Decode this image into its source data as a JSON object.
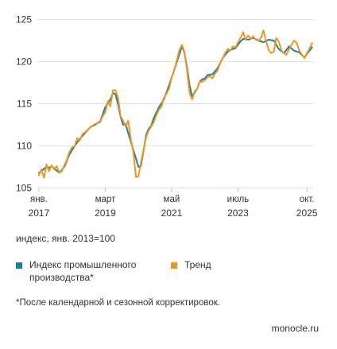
{
  "chart_data": {
    "type": "line",
    "xlabel": "",
    "ylabel": "",
    "ylim": [
      105,
      125.5
    ],
    "y_ticks": [
      105,
      110,
      115,
      120,
      125
    ],
    "x_ticks": [
      {
        "month": "янв.",
        "year": "2017",
        "x": 2017.0
      },
      {
        "month": "март",
        "year": "2019",
        "x": 2019.167
      },
      {
        "month": "май",
        "year": "2021",
        "x": 2021.333
      },
      {
        "month": "июль",
        "year": "2023",
        "x": 2023.5
      },
      {
        "month": "окт.",
        "year": "2025",
        "x": 2025.75
      }
    ],
    "grid": "horizontal",
    "series": [
      {
        "name": "Индекс промышленного производства*",
        "color": "#1a7fa6",
        "x": [
          2017.0,
          2017.08,
          2017.17,
          2017.25,
          2017.33,
          2017.42,
          2017.5,
          2017.67,
          2017.83,
          2018.0,
          2018.17,
          2018.33,
          2018.5,
          2018.67,
          2018.83,
          2019.0,
          2019.17,
          2019.33,
          2019.42,
          2019.5,
          2019.58,
          2019.67,
          2019.75,
          2019.83,
          2020.0,
          2020.17,
          2020.25,
          2020.33,
          2020.42,
          2020.5,
          2020.58,
          2020.67,
          2020.75,
          2020.92,
          2021.08,
          2021.25,
          2021.42,
          2021.58,
          2021.67,
          2021.75,
          2021.83,
          2021.92,
          2022.0,
          2022.08,
          2022.17,
          2022.25,
          2022.33,
          2022.42,
          2022.5,
          2022.67,
          2022.83,
          2023.0,
          2023.17,
          2023.25,
          2023.42,
          2023.58,
          2023.67,
          2023.83,
          2024.0,
          2024.17,
          2024.33,
          2024.5,
          2024.67,
          2024.83,
          2025.0,
          2025.17,
          2025.33,
          2025.5,
          2025.67,
          2025.75,
          2025.92
        ],
        "values": [
          106.8,
          107.0,
          107.3,
          107.5,
          107.4,
          107.6,
          107.3,
          106.8,
          107.5,
          109.0,
          110.0,
          110.8,
          111.5,
          112.2,
          112.5,
          112.9,
          114.6,
          115.5,
          116.3,
          116.1,
          115.0,
          113.4,
          112.5,
          112.6,
          110.5,
          108.5,
          107.5,
          107.6,
          109.5,
          111.3,
          112.0,
          112.4,
          113.3,
          114.6,
          115.5,
          117.2,
          119.0,
          120.8,
          121.8,
          121.1,
          119.5,
          117.2,
          115.9,
          116.3,
          116.8,
          117.6,
          117.9,
          118.0,
          118.4,
          118.5,
          119.2,
          120.4,
          121.2,
          121.4,
          121.6,
          122.4,
          122.7,
          122.6,
          122.8,
          122.5,
          122.3,
          122.6,
          122.5,
          121.5,
          121.0,
          121.8,
          121.3,
          121.1,
          120.5,
          120.9,
          121.7
        ]
      },
      {
        "name": "Тренд",
        "color": "#f0961e",
        "x": [
          2017.0,
          2017.08,
          2017.17,
          2017.25,
          2017.33,
          2017.42,
          2017.5,
          2017.58,
          2017.67,
          2017.75,
          2017.83,
          2017.92,
          2018.0,
          2018.08,
          2018.17,
          2018.25,
          2018.33,
          2018.42,
          2018.5,
          2018.67,
          2018.83,
          2019.0,
          2019.08,
          2019.17,
          2019.25,
          2019.33,
          2019.42,
          2019.5,
          2019.58,
          2019.67,
          2019.75,
          2019.83,
          2019.92,
          2020.0,
          2020.08,
          2020.17,
          2020.25,
          2020.33,
          2020.42,
          2020.5,
          2020.58,
          2020.67,
          2020.75,
          2020.83,
          2020.92,
          2021.0,
          2021.08,
          2021.17,
          2021.25,
          2021.33,
          2021.42,
          2021.5,
          2021.58,
          2021.67,
          2021.75,
          2021.83,
          2021.92,
          2022.0,
          2022.08,
          2022.17,
          2022.25,
          2022.33,
          2022.42,
          2022.5,
          2022.58,
          2022.67,
          2022.75,
          2022.83,
          2022.92,
          2023.0,
          2023.08,
          2023.17,
          2023.25,
          2023.33,
          2023.42,
          2023.5,
          2023.58,
          2023.67,
          2023.75,
          2023.83,
          2023.92,
          2024.0,
          2024.08,
          2024.17,
          2024.25,
          2024.33,
          2024.42,
          2024.5,
          2024.58,
          2024.67,
          2024.75,
          2024.83,
          2024.92,
          2025.0,
          2025.08,
          2025.17,
          2025.25,
          2025.33,
          2025.42,
          2025.5,
          2025.58,
          2025.67,
          2025.75,
          2025.83,
          2025.92
        ],
        "values": [
          106.5,
          107.2,
          106.2,
          107.8,
          107.0,
          107.7,
          107.2,
          107.6,
          106.8,
          107.0,
          107.7,
          108.4,
          109.3,
          109.8,
          110.0,
          110.9,
          110.6,
          111.4,
          111.6,
          112.2,
          112.6,
          112.8,
          113.5,
          114.0,
          115.3,
          114.7,
          116.6,
          116.6,
          115.8,
          113.5,
          113.0,
          112.3,
          113.0,
          110.8,
          109.4,
          106.3,
          106.4,
          108.0,
          109.6,
          111.0,
          111.8,
          112.3,
          112.8,
          113.6,
          114.3,
          114.6,
          115.7,
          116.2,
          116.8,
          118.0,
          119.0,
          120.1,
          121.3,
          122.0,
          121.2,
          119.2,
          116.3,
          115.5,
          116.4,
          116.8,
          117.6,
          117.6,
          117.8,
          118.1,
          118.3,
          118.0,
          118.6,
          118.9,
          119.8,
          120.4,
          121.0,
          121.5,
          121.3,
          121.8,
          121.7,
          122.3,
          122.8,
          123.5,
          122.6,
          123.1,
          122.7,
          123.0,
          122.6,
          122.5,
          122.8,
          123.7,
          122.4,
          121.4,
          121.0,
          121.2,
          122.8,
          122.4,
          121.3,
          121.0,
          120.8,
          121.5,
          122.0,
          122.5,
          122.2,
          121.3,
          120.9,
          120.4,
          121.0,
          121.5,
          122.2
        ]
      }
    ],
    "index_note": "индекс, янв. 2013=100",
    "legend": [
      {
        "label": "Индекс промышленного производства*",
        "color": "#1a7fa6"
      },
      {
        "label": "Тренд",
        "color": "#f0961e"
      }
    ],
    "footnote": "*После календарной и сезонной корректировок.",
    "source": "monocle.ru"
  }
}
